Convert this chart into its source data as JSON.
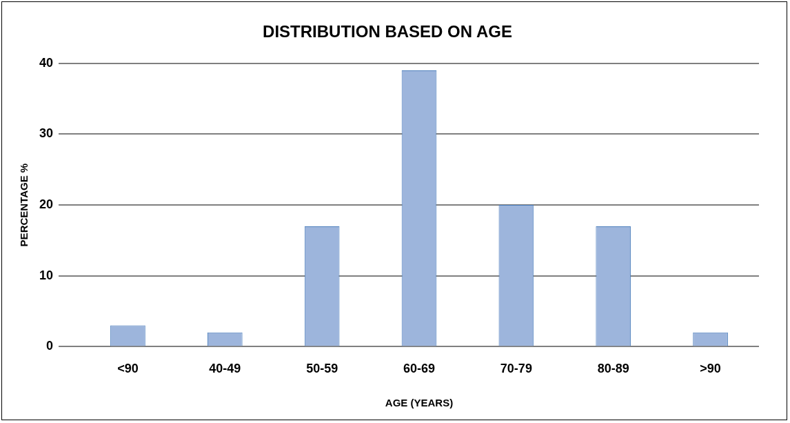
{
  "chart_data": {
    "type": "bar",
    "title": "DISTRIBUTION BASED ON AGE",
    "xlabel": "AGE (YEARS)",
    "ylabel": "PERCENTAGE %",
    "categories": [
      "<90",
      "40-49",
      "50-59",
      "60-69",
      "70-79",
      "80-89",
      ">90"
    ],
    "values": [
      3,
      2,
      17,
      39,
      20,
      17,
      2
    ],
    "color": "#9db5dc",
    "ylim": [
      0,
      40
    ],
    "yticks": [
      0,
      10,
      20,
      30,
      40
    ],
    "grid": "y",
    "legend": false
  }
}
